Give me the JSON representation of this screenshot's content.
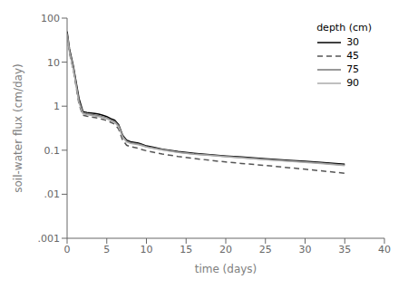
{
  "chart_data": {
    "type": "line",
    "title": "",
    "xlabel": "time (days)",
    "ylabel": "soil-water flux (cm/day)",
    "legend_title": "depth (cm)",
    "legend": "upper right",
    "log": "y",
    "grid": false,
    "xlim": [
      0,
      40
    ],
    "ylim": [
      0.001,
      100
    ],
    "xticks": [
      0,
      5,
      10,
      15,
      20,
      25,
      30,
      35,
      40
    ],
    "yticks": [
      {
        "value": 0.001,
        "label": ".001"
      },
      {
        "value": 0.01,
        "label": ".01"
      },
      0.1,
      1,
      10,
      100
    ],
    "x": [
      0,
      0.3,
      0.8,
      1.5,
      2.0,
      2.5,
      3.0,
      3.5,
      4.0,
      4.5,
      5.0,
      5.5,
      6.0,
      6.5,
      7.0,
      7.5,
      8.0,
      8.5,
      9.0,
      9.5,
      10.0,
      11,
      12,
      14,
      16,
      18,
      20,
      22,
      25,
      28,
      30,
      32,
      35
    ],
    "series": [
      {
        "name": "30",
        "color": "#000000",
        "line_style": "solid",
        "values": [
          50,
          20,
          8.0,
          1.5,
          0.75,
          0.72,
          0.7,
          0.68,
          0.66,
          0.62,
          0.58,
          0.52,
          0.48,
          0.38,
          0.22,
          0.17,
          0.155,
          0.15,
          0.145,
          0.135,
          0.125,
          0.115,
          0.105,
          0.093,
          0.085,
          0.079,
          0.074,
          0.07,
          0.064,
          0.059,
          0.056,
          0.053,
          0.048
        ]
      },
      {
        "name": "45",
        "color": "#555555",
        "line_style": "dashed",
        "values": [
          40,
          16,
          6.5,
          1.1,
          0.62,
          0.59,
          0.57,
          0.55,
          0.53,
          0.5,
          0.47,
          0.43,
          0.39,
          0.3,
          0.17,
          0.13,
          0.12,
          0.115,
          0.11,
          0.103,
          0.097,
          0.089,
          0.082,
          0.072,
          0.065,
          0.059,
          0.054,
          0.05,
          0.045,
          0.04,
          0.037,
          0.034,
          0.03
        ]
      },
      {
        "name": "75",
        "color": "#777777",
        "line_style": "solid",
        "values": [
          45,
          18,
          7.0,
          1.3,
          0.7,
          0.67,
          0.65,
          0.63,
          0.61,
          0.57,
          0.54,
          0.49,
          0.45,
          0.36,
          0.21,
          0.16,
          0.148,
          0.143,
          0.138,
          0.13,
          0.12,
          0.111,
          0.103,
          0.09,
          0.082,
          0.077,
          0.072,
          0.068,
          0.062,
          0.057,
          0.054,
          0.051,
          0.046
        ]
      },
      {
        "name": "90",
        "color": "#aaaaaa",
        "line_style": "solid",
        "values": [
          42,
          17,
          6.8,
          1.2,
          0.67,
          0.64,
          0.62,
          0.6,
          0.58,
          0.55,
          0.52,
          0.47,
          0.43,
          0.34,
          0.2,
          0.155,
          0.143,
          0.138,
          0.133,
          0.126,
          0.118,
          0.109,
          0.101,
          0.089,
          0.081,
          0.076,
          0.071,
          0.067,
          0.061,
          0.056,
          0.053,
          0.05,
          0.045
        ]
      }
    ]
  }
}
